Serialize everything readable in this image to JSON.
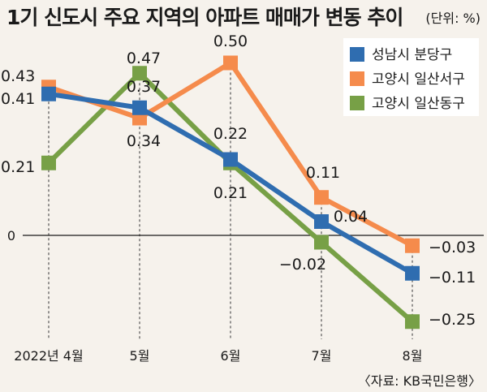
{
  "chart_data": {
    "type": "line",
    "title": "1기 신도시 주요 지역의 아파트 매매가 변동 추이",
    "unit": "(단위: %)",
    "categories": [
      "2022년 4월",
      "5월",
      "6월",
      "7월",
      "8월"
    ],
    "ylim": [
      -0.3,
      0.55
    ],
    "zero_label": "0",
    "legend_position": "top-right",
    "series": [
      {
        "name": "성남시 분당구",
        "color": "#2f6db0",
        "values": [
          0.41,
          0.37,
          0.22,
          0.04,
          -0.11
        ],
        "labels": [
          "0.41",
          "0.37",
          "0.22",
          "0.04",
          "−0.11"
        ]
      },
      {
        "name": "고양시 일산서구",
        "color": "#f58b4c",
        "values": [
          0.43,
          0.34,
          0.5,
          0.11,
          -0.03
        ],
        "labels": [
          "0.43",
          "0.34",
          "0.50",
          "0.11",
          "−0.03"
        ]
      },
      {
        "name": "고양시 일산동구",
        "color": "#77a046",
        "values": [
          0.21,
          0.47,
          0.21,
          -0.02,
          -0.25
        ],
        "labels": [
          "0.21",
          "0.47",
          "0.21",
          "−0.02",
          "−0.25"
        ]
      }
    ],
    "source": "〈자료: KB국민은행〉"
  }
}
